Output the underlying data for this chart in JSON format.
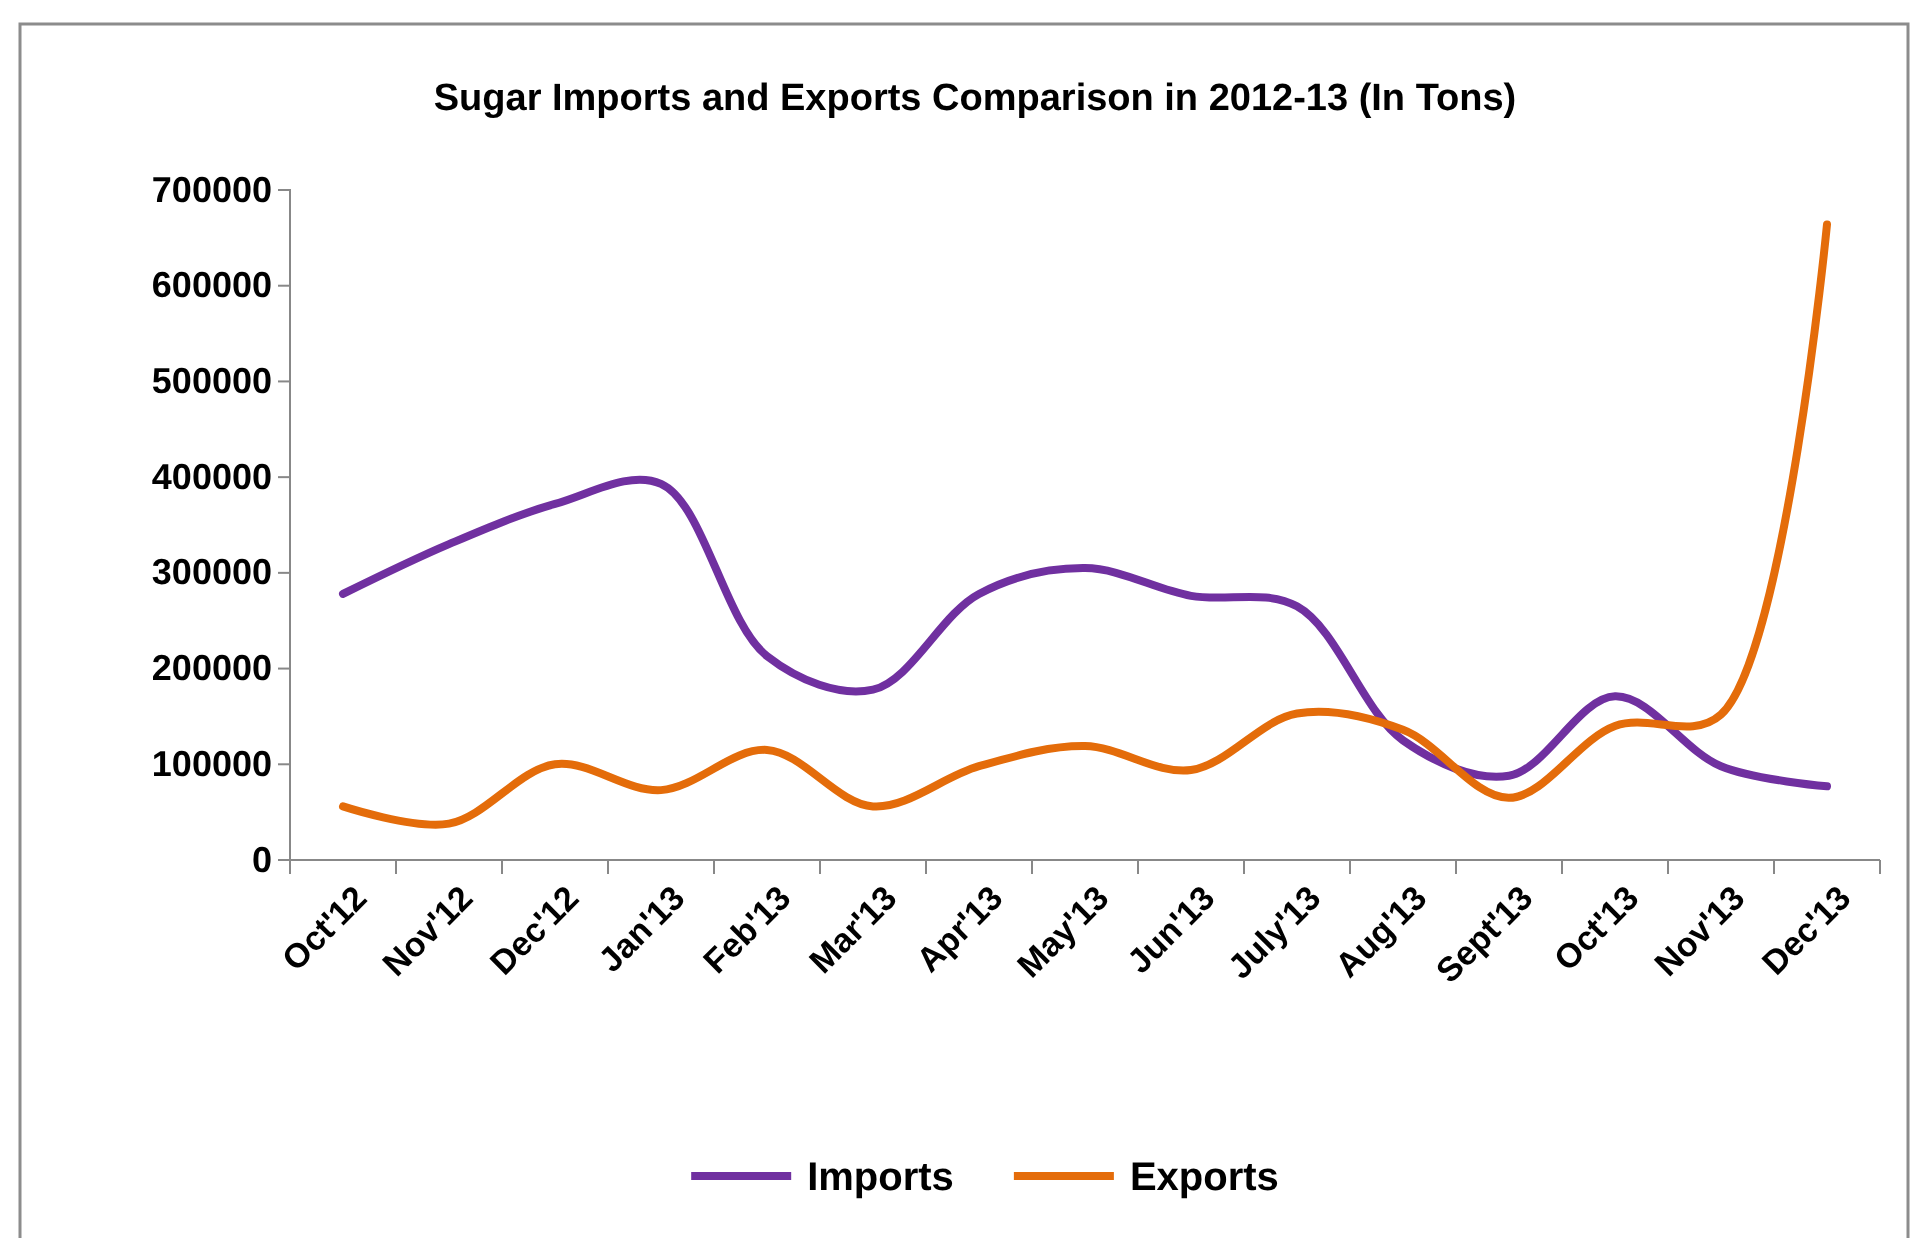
{
  "chart_data": {
    "type": "line",
    "title": "Sugar Imports and Exports Comparison in 2012-13 (In Tons)",
    "categories": [
      "Oct'12",
      "Nov'12",
      "Dec'12",
      "Jan'13",
      "Feb'13",
      "Mar'13",
      "Apr'13",
      "May'13",
      "Jun'13",
      "July'13",
      "Aug'13",
      "Sept'13",
      "Oct'13",
      "Nov'13",
      "Dec'13"
    ],
    "series": [
      {
        "name": "Imports",
        "color": "#7030a0",
        "values": [
          278000,
          330000,
          372000,
          393000,
          213000,
          178000,
          278000,
          305000,
          276000,
          265000,
          125000,
          88000,
          171000,
          98000,
          77000
        ]
      },
      {
        "name": "Exports",
        "color": "#e46c0a",
        "values": [
          56000,
          38000,
          100000,
          73000,
          115000,
          56000,
          98000,
          119000,
          94000,
          153000,
          136000,
          65000,
          140000,
          152000,
          664000
        ]
      }
    ],
    "ylim": [
      0,
      700000
    ],
    "yticks": [
      0,
      100000,
      200000,
      300000,
      400000,
      500000,
      600000,
      700000
    ],
    "grid": false,
    "legend": "bottom",
    "marker": "none",
    "line_style": "solid"
  }
}
